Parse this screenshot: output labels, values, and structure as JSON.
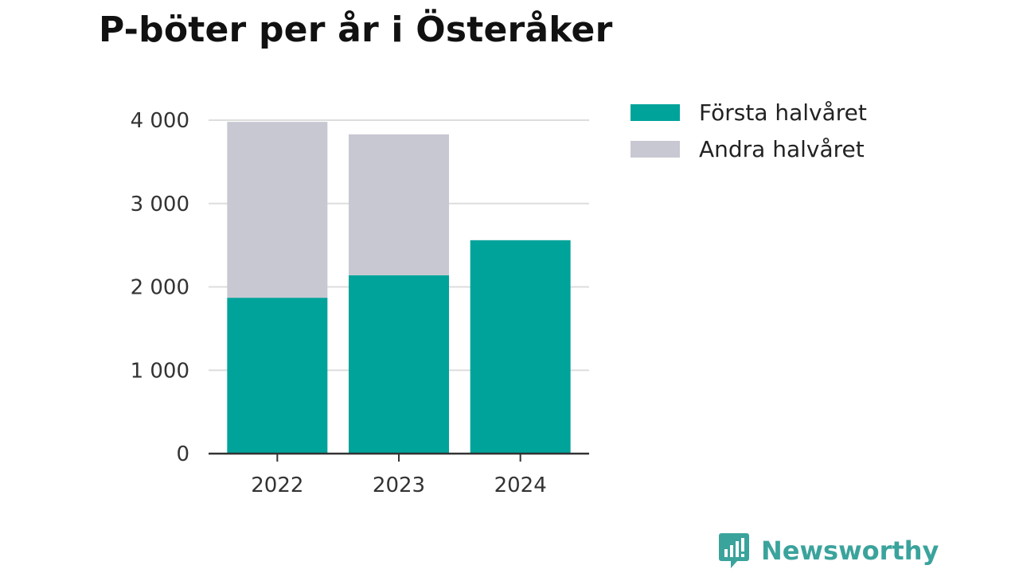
{
  "title": "P-böter per år i Österåker",
  "brand": {
    "name": "Newsworthy",
    "icon": "newsworthy-logo-icon",
    "color": "#3aa39c"
  },
  "chart_data": {
    "type": "bar",
    "stacked": true,
    "title": "P-böter per år i Österåker",
    "xlabel": "",
    "ylabel": "",
    "categories": [
      "2022",
      "2023",
      "2024"
    ],
    "series": [
      {
        "name": "Första halvåret",
        "color": "#00a39a",
        "values": [
          1870,
          2140,
          2560
        ]
      },
      {
        "name": "Andra halvåret",
        "color": "#c8c8d2",
        "values": [
          2110,
          1690,
          0
        ]
      }
    ],
    "ylim": [
      0,
      4000
    ],
    "yticks": [
      0,
      1000,
      2000,
      3000,
      4000
    ],
    "ytick_labels": [
      "0",
      "1 000",
      "2 000",
      "3 000",
      "4 000"
    ],
    "grid": true,
    "legend_position": "top-right"
  }
}
